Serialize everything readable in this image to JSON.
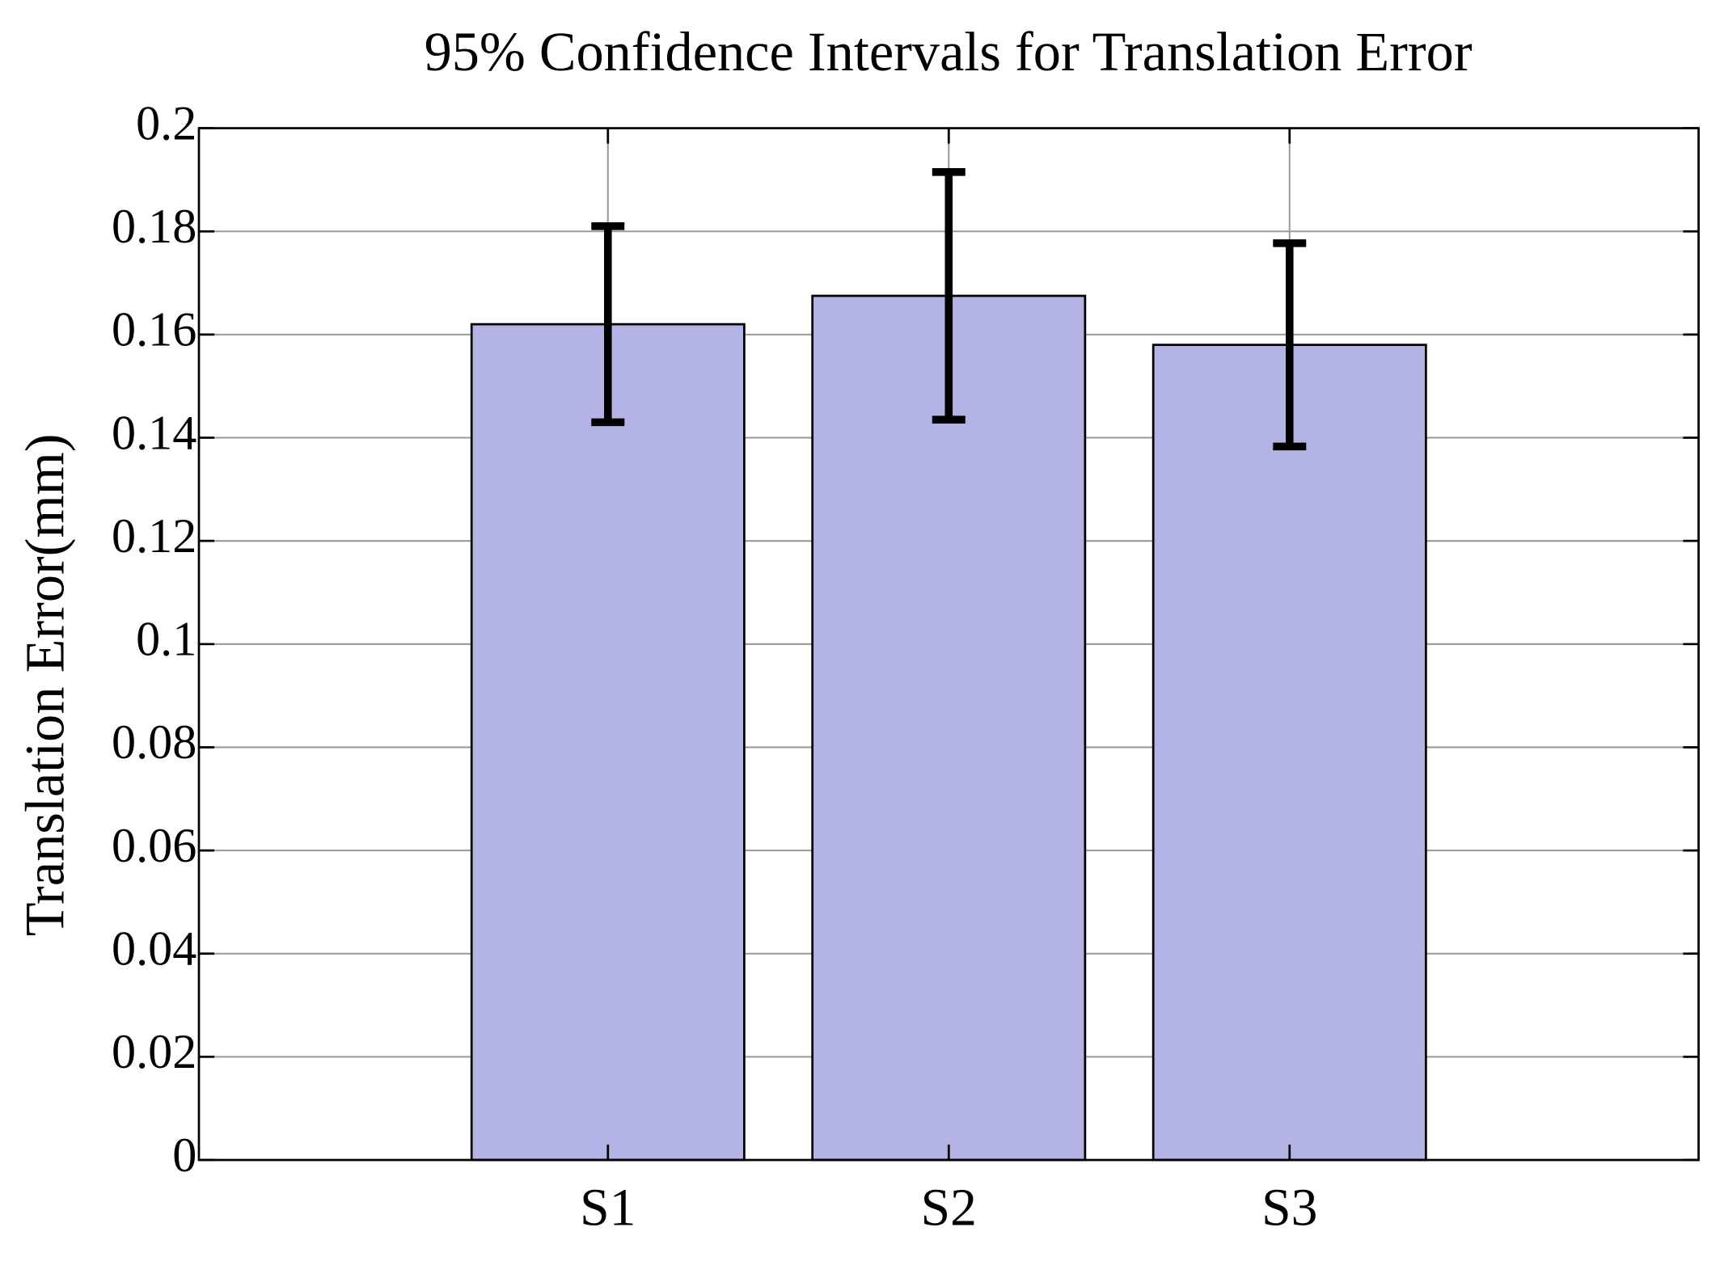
{
  "chart_data": {
    "type": "bar",
    "title": "95% Confidence Intervals for Translation Error",
    "y_label": "Translation Error(mm)",
    "categories": [
      "S1",
      "S2",
      "S3"
    ],
    "values": [
      0.162,
      0.1675,
      0.158
    ],
    "errors": [
      0.019,
      0.024,
      0.0197
    ],
    "color": "#b3b3e5",
    "ylim": [
      0,
      0.2
    ],
    "yticks": [
      0,
      0.02,
      0.04,
      0.06,
      0.08,
      0.1,
      0.12,
      0.14,
      0.16,
      0.18,
      0.2
    ],
    "grid": true
  }
}
